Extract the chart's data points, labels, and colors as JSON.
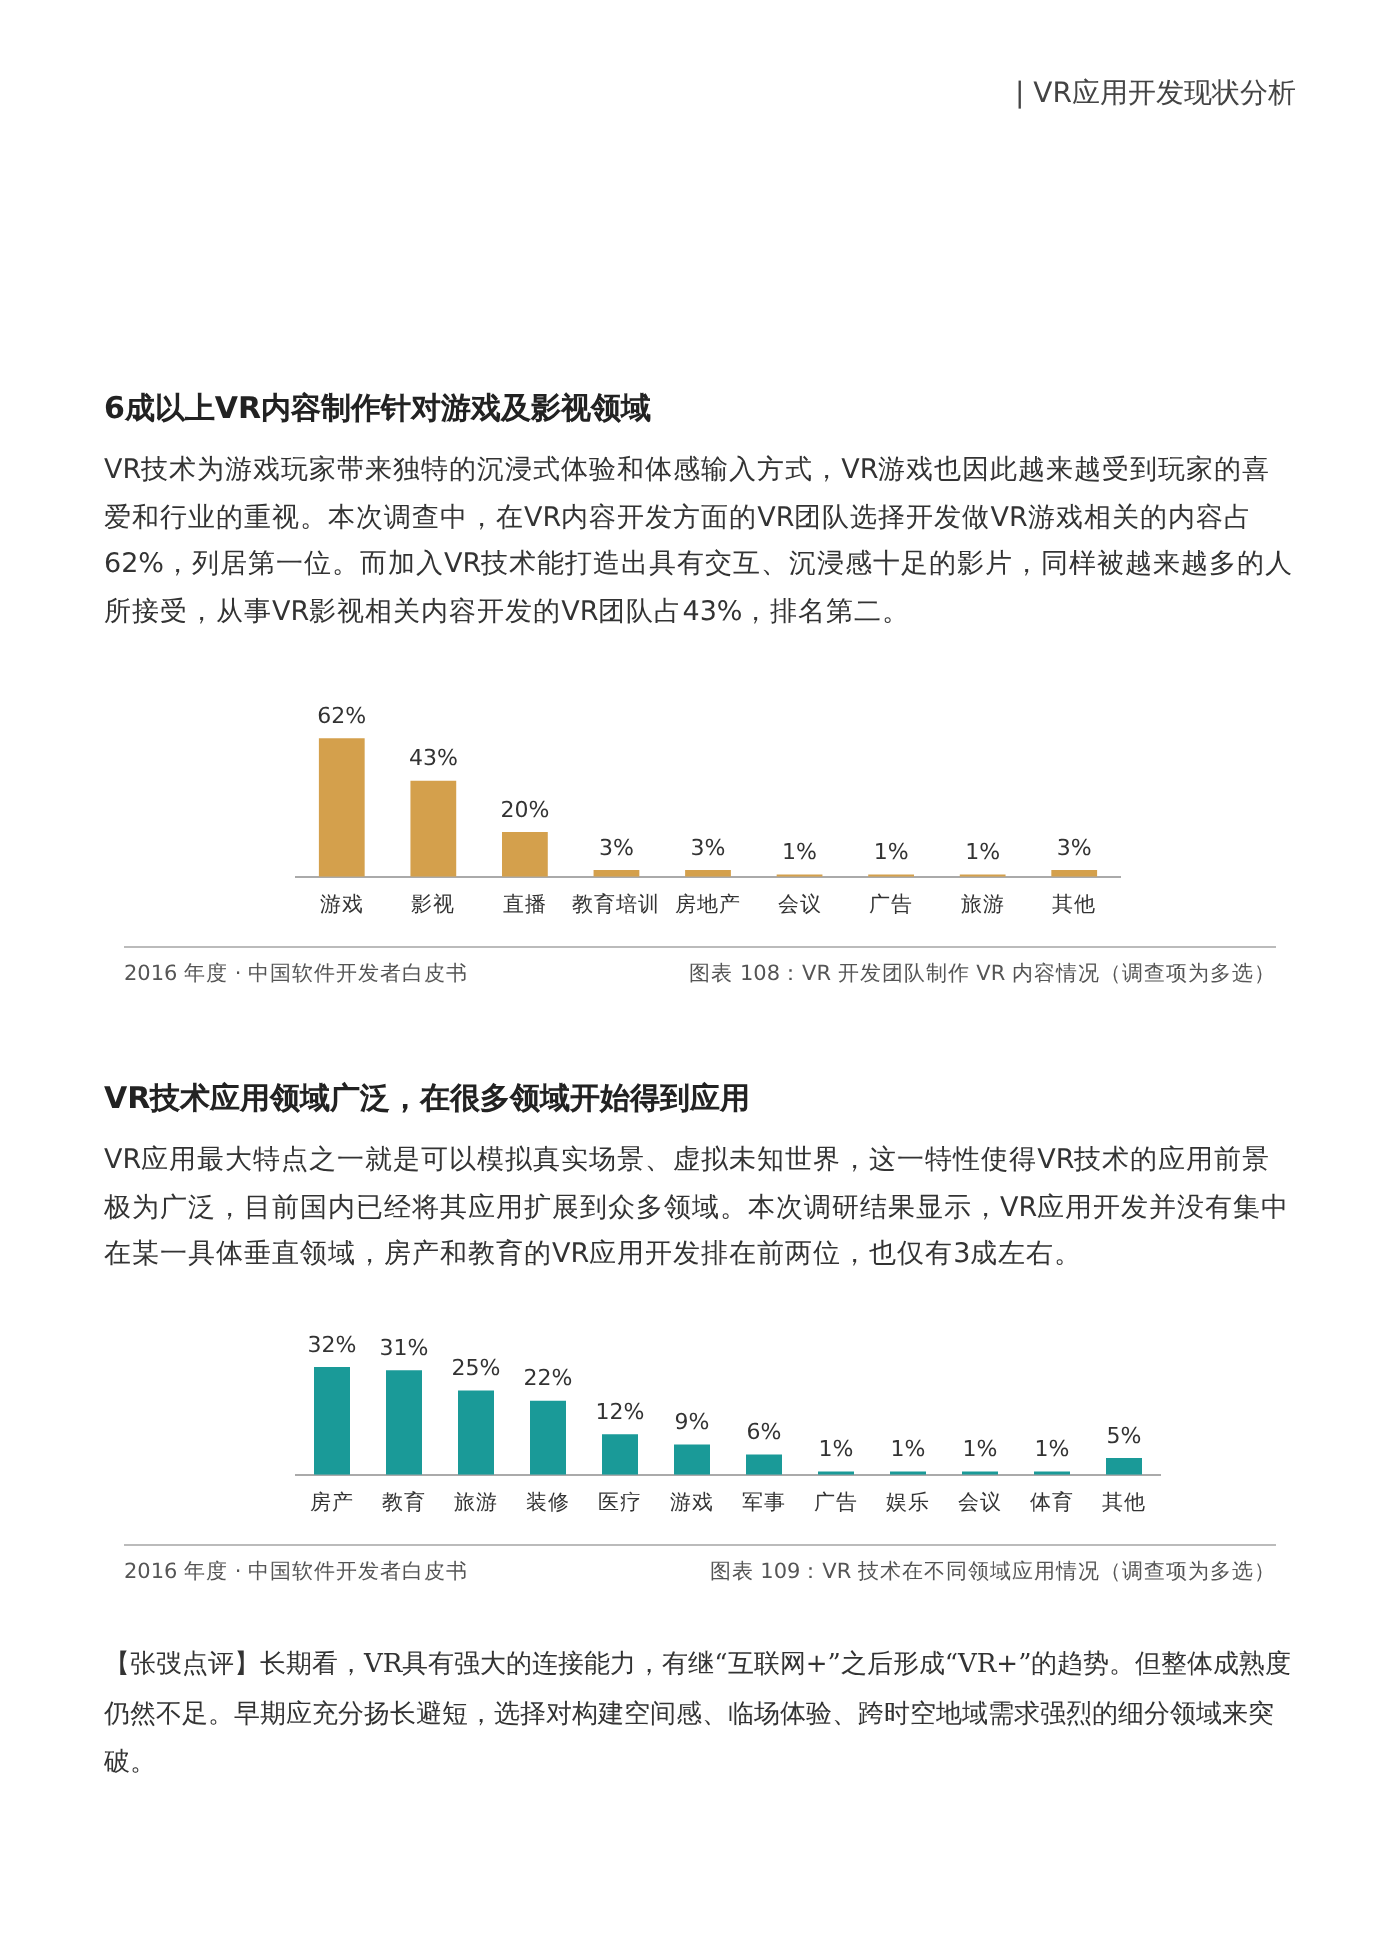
{
  "chart_data": [
    {
      "type": "bar",
      "title": "6成以上VR内容制作针对游戏及影视领域",
      "subtitle": "VR技术为游戏玩家带来独特的沉浸式体验和体感输入方式，VR游戏也因此越来越受到玩家的喜爱和行业的重视。本次调查中，在VR内容开发方面的VR团队选择开发做VR游戏相关的内容占62%，列居第一位。而加入VR技术能打造出具有交互、沉浸感十足的影片，同样被越来越多的人所接受，从事VR影视相关内容开发的VR团队占43%，排名第二。",
      "categories": [
        "游戏",
        "影视",
        "直播",
        "教育培训",
        "房地产",
        "会议",
        "广告",
        "旅游",
        "其他"
      ],
      "values": [
        62,
        43,
        20,
        3,
        3,
        1,
        1,
        1,
        3
      ],
      "value_labels": [
        "62%",
        "43%",
        "20%",
        "3%",
        "3%",
        "1%",
        "1%",
        "1%",
        "3%"
      ],
      "color": "#d4a04c",
      "grid": false,
      "legend": false,
      "tick_labels": "x",
      "annotations": [
        "| VR应用开发现状分析",
        "2016 年度 · 中国软件开发者白皮书",
        "图表 108：VR 开发团队制作 VR 内容情况（调查项为多选）"
      ]
    },
    {
      "type": "bar",
      "title": "VR技术应用领域广泛，在很多领域开始得到应用",
      "subtitle": "VR应用最大特点之一就是可以模拟真实场景、虚拟未知世界，这一特性使得VR技术的应用前景极为广泛，目前国内已经将其应用扩展到众多领域。本次调研结果显示，VR应用开发并没有集中在某一具体垂直领域，房产和教育的VR应用开发排在前两位，也仅有3成左右。",
      "categories": [
        "房产",
        "教育",
        "旅游",
        "装修",
        "医疗",
        "游戏",
        "军事",
        "广告",
        "娱乐",
        "会议",
        "体育",
        "其他"
      ],
      "values": [
        32,
        31,
        25,
        22,
        12,
        9,
        6,
        1,
        1,
        1,
        1,
        5
      ],
      "value_labels": [
        "32%",
        "31%",
        "25%",
        "22%",
        "12%",
        "9%",
        "6%",
        "1%",
        "1%",
        "1%",
        "1%",
        "5%"
      ],
      "color": "#1a9a98",
      "grid": false,
      "legend": false,
      "tick_labels": "x",
      "annotations": [
        "2016 年度 · 中国软件开发者白皮书",
        "图表 109：VR 技术在不同领域应用情况（调查项为多选）",
        "【张弢点评】长期看，VR具有强大的连接能力，有继“互联网+”之后形成“VR+”的趋势。但整体成熟度仍然不足。早期应充分扬长避短，选择对构建空间感、临场体验、跨时空地域需求强烈的细分领域来突破。"
      ]
    }
  ]
}
